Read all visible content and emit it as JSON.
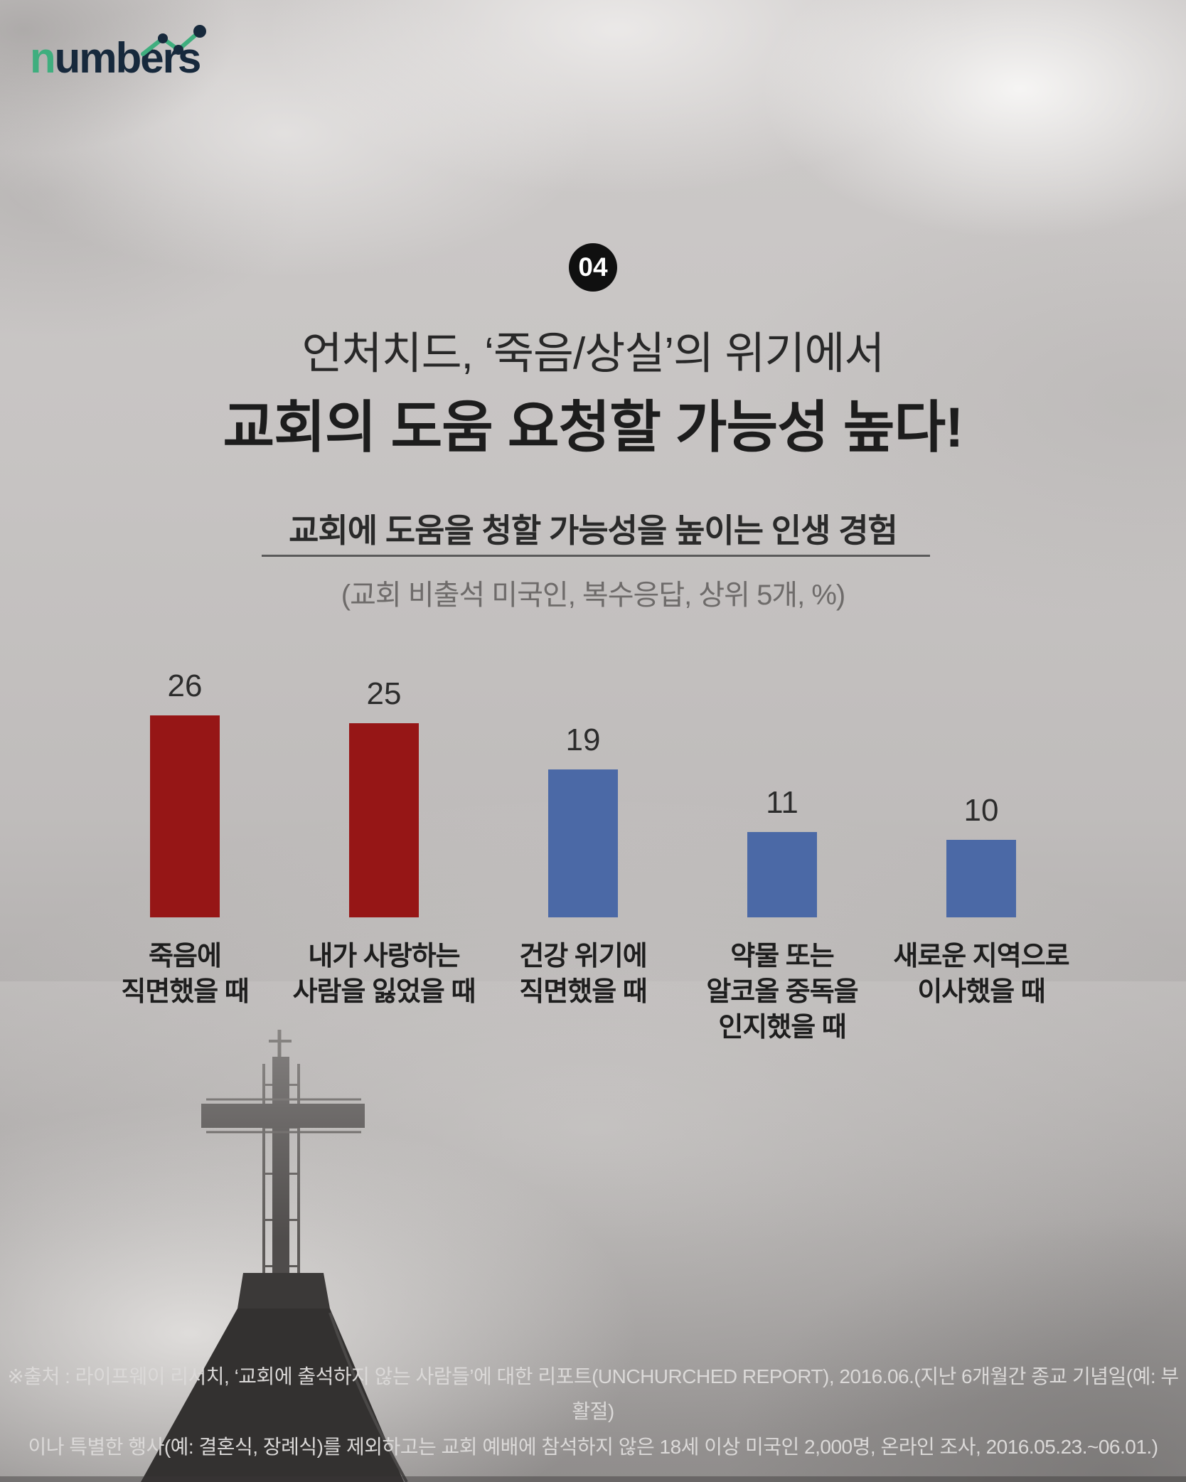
{
  "brand": {
    "logo_n": "n",
    "logo_rest": "umbers",
    "accent_green": "#3fae7e",
    "navy": "#17293c"
  },
  "badge": {
    "number": "04"
  },
  "title": {
    "line1": "언처치드, ‘죽음/상실’의 위기에서",
    "line2": "교회의 도움 요청할 가능성 높다!"
  },
  "subtitle": {
    "heading": "교회에 도움을 청할 가능성을 높이는 인생 경험",
    "note": "(교회 비출석 미국인, 복수응답, 상위 5개, %)"
  },
  "chart_data": {
    "type": "bar",
    "title": "교회에 도움을 청할 가능성을 높이는 인생 경험",
    "subtitle": "(교회 비출석 미국인, 복수응답, 상위 5개, %)",
    "unit": "%",
    "categories": [
      "죽음에 직면했을 때",
      "내가 사랑하는 사람을 잃었을 때",
      "건강 위기에 직면했을 때",
      "약물 또는 알코올 중독을 인지했을 때",
      "새로운 지역으로 이사했을 때"
    ],
    "category_lines": [
      [
        "죽음에",
        "직면했을 때"
      ],
      [
        "내가 사랑하는",
        "사람을 잃었을 때"
      ],
      [
        "건강 위기에",
        "직면했을 때"
      ],
      [
        "약물 또는",
        "알코올 중독을",
        "인지했을 때"
      ],
      [
        "새로운 지역으로",
        "이사했을 때"
      ]
    ],
    "values": [
      26,
      25,
      19,
      11,
      10
    ],
    "bar_colors": [
      "#961616",
      "#961616",
      "#4b69a6",
      "#4b69a6",
      "#4b69a6"
    ],
    "ylim": [
      0,
      32
    ],
    "grid": false,
    "legend": false,
    "value_labels_position": "above-bars"
  },
  "footer": {
    "line1": "※출처 : 라이프웨이 리서치, ‘교회에 출석하지 않는 사람들’에 대한 리포트(UNCHURCHED REPORT), 2016.06.(지난 6개월간 종교 기념일(예: 부활절)",
    "line2": "이나 특별한 행사(예: 결혼식, 장례식)를 제외하고는 교회 예배에 참석하지 않은 18세 이상 미국인 2,000명, 온라인 조사, 2016.05.23.~06.01.)"
  }
}
